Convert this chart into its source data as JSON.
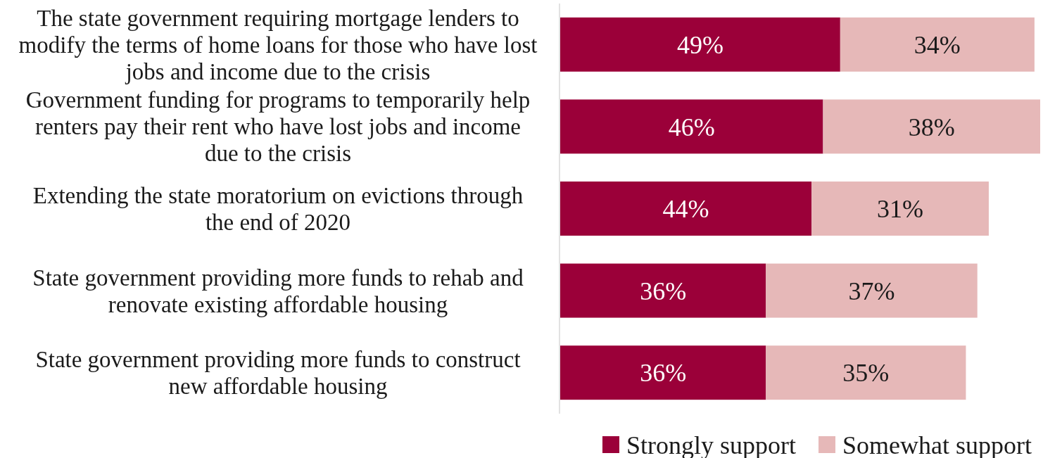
{
  "chart_data": {
    "type": "bar",
    "orientation": "horizontal",
    "stacked": true,
    "legend": "bottom",
    "categories": [
      "The state government requiring mortgage lenders to modify the terms of home loans for those who have lost jobs and income due to the crisis",
      "Government funding for programs to temporarily help renters pay their rent who have lost jobs and income due to the crisis",
      "Extending the state moratorium on evictions through the end of 2020",
      "State government providing more funds to rehab and renovate existing affordable housing",
      "State government providing more funds to construct new affordable housing"
    ],
    "series": [
      {
        "name": "Strongly support",
        "color": "#9b0039",
        "values": [
          49,
          46,
          44,
          36,
          36
        ],
        "value_labels": [
          "49%",
          "46%",
          "44%",
          "36%",
          "36%"
        ]
      },
      {
        "name": "Somewhat support",
        "color": "#e6b8b8",
        "values": [
          34,
          38,
          31,
          37,
          35
        ],
        "value_labels": [
          "34%",
          "38%",
          "31%",
          "37%",
          "35%"
        ]
      }
    ]
  }
}
